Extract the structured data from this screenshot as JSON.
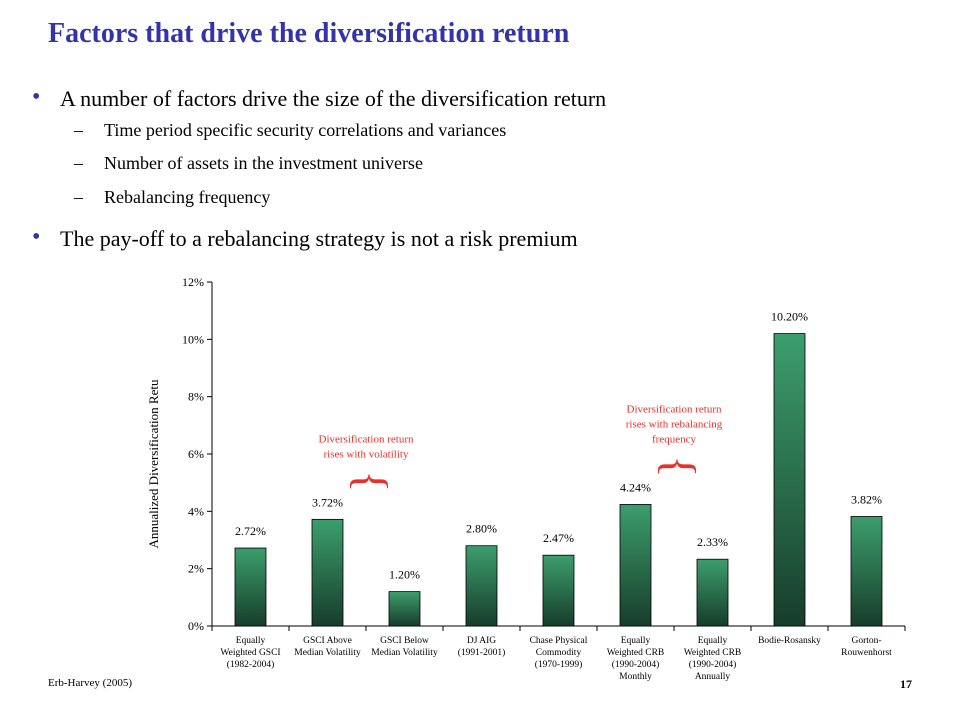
{
  "slide": {
    "title": "Factors that drive the diversification return",
    "bullets": [
      {
        "text": "A number of factors drive the size of the diversification return",
        "subs": [
          "Time period specific security correlations and variances",
          "Number of assets in the investment universe",
          "Rebalancing frequency"
        ]
      },
      {
        "text": "The pay-off to a rebalancing strategy is not a risk premium",
        "subs": []
      }
    ],
    "bullet_symbol": "•",
    "dash_symbol": "–",
    "source": "Erb-Harvey (2005)",
    "page_number": "17"
  },
  "chart_data": {
    "type": "bar",
    "ylabel": "Annualized Diversification Retu",
    "ylim": [
      0,
      12
    ],
    "yticks": [
      0,
      2,
      4,
      6,
      8,
      10,
      12
    ],
    "ytick_labels": [
      "0%",
      "2%",
      "4%",
      "6%",
      "8%",
      "10%",
      "12%"
    ],
    "grid": false,
    "categories": [
      [
        "Equally",
        "Weighted GSCI",
        "(1982-2004)"
      ],
      [
        "GSCI Above",
        "Median Volatility"
      ],
      [
        "GSCI Below",
        "Median Volatility"
      ],
      [
        "DJ AIG",
        "(1991-2001)"
      ],
      [
        "Chase Physical",
        "Commodity",
        "(1970-1999)"
      ],
      [
        "Equally",
        "Weighted CRB",
        "(1990-2004)",
        "Monthly"
      ],
      [
        "Equally",
        "Weighted CRB",
        "(1990-2004)",
        "Annually"
      ],
      [
        "Bodie-Rosansky"
      ],
      [
        "Gorton-",
        "Rouwenhorst"
      ]
    ],
    "values": [
      2.72,
      3.72,
      1.2,
      2.8,
      2.47,
      4.24,
      2.33,
      10.2,
      3.82
    ],
    "data_labels": [
      "2.72%",
      "3.72%",
      "1.20%",
      "2.80%",
      "2.47%",
      "4.24%",
      "2.33%",
      "10.20%",
      "3.82%"
    ],
    "bar_color_top": "#3c9e6c",
    "bar_color_bottom": "#173d2b",
    "annotations": [
      {
        "lines": [
          "Diversification return",
          "rises with volatility"
        ],
        "between": [
          1,
          2
        ],
        "color": "#e8312a"
      },
      {
        "lines": [
          "Diversification return",
          "rises with rebalancing",
          "frequency"
        ],
        "between": [
          5,
          6
        ],
        "color": "#e8312a"
      }
    ],
    "brace_glyph": "{"
  }
}
